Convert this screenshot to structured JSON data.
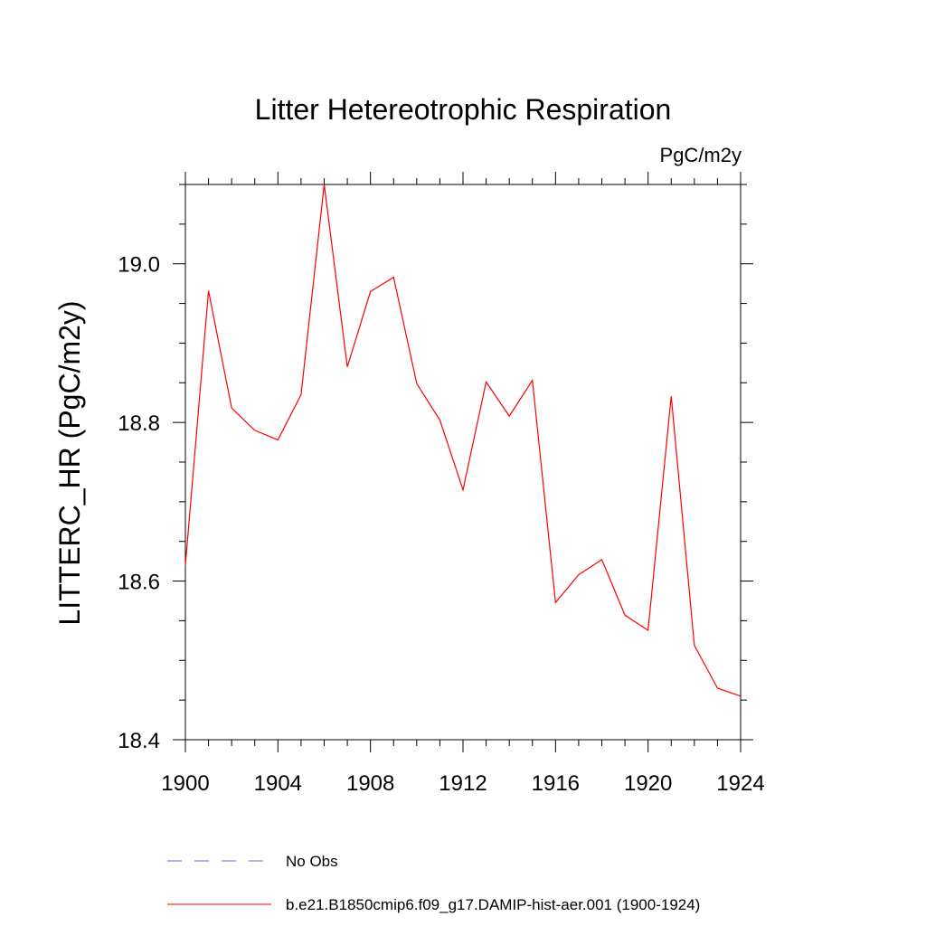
{
  "chart_data": {
    "type": "line",
    "title": "Litter Hetereotrophic Respiration",
    "units": "PgC/m2y",
    "ylabel": "LITTERC_HR  (PgC/m2y)",
    "xlabel": "",
    "xlim": [
      1900,
      1924
    ],
    "ylim": [
      18.4,
      19.1
    ],
    "x_ticks": [
      1900,
      1904,
      1908,
      1912,
      1916,
      1920,
      1924
    ],
    "x_tick_labels": [
      "1900",
      "1904",
      "1908",
      "1912",
      "1916",
      "1920",
      "1924"
    ],
    "y_ticks": [
      18.4,
      18.6,
      18.8,
      19.0
    ],
    "y_tick_labels": [
      "18.4",
      "18.6",
      "18.8",
      "19.0"
    ],
    "grid": false,
    "legend_placement": "bottom",
    "series": [
      {
        "name": "b.e21.B1850cmip6.f09_g17.DAMIP-hist-aer.001 (1900-1924)",
        "color": "#ff0000",
        "style": "solid",
        "x": [
          1900,
          1901,
          1902,
          1903,
          1904,
          1905,
          1906,
          1907,
          1908,
          1909,
          1910,
          1911,
          1912,
          1913,
          1914,
          1915,
          1916,
          1917,
          1918,
          1919,
          1920,
          1921,
          1922,
          1923,
          1924
        ],
        "y": [
          18.62,
          18.966,
          18.818,
          18.79,
          18.778,
          18.835,
          19.1,
          18.87,
          18.965,
          18.983,
          18.849,
          18.803,
          18.715,
          18.851,
          18.808,
          18.853,
          18.573,
          18.608,
          18.627,
          18.557,
          18.538,
          18.833,
          18.519,
          18.465,
          18.455
        ]
      }
    ],
    "legend": [
      {
        "label": "No Obs",
        "color": "#6a6ac8",
        "style": "dashed"
      },
      {
        "label": "b.e21.B1850cmip6.f09_g17.DAMIP-hist-aer.001 (1900-1924)",
        "color": "#ff0000",
        "style": "solid"
      }
    ]
  }
}
